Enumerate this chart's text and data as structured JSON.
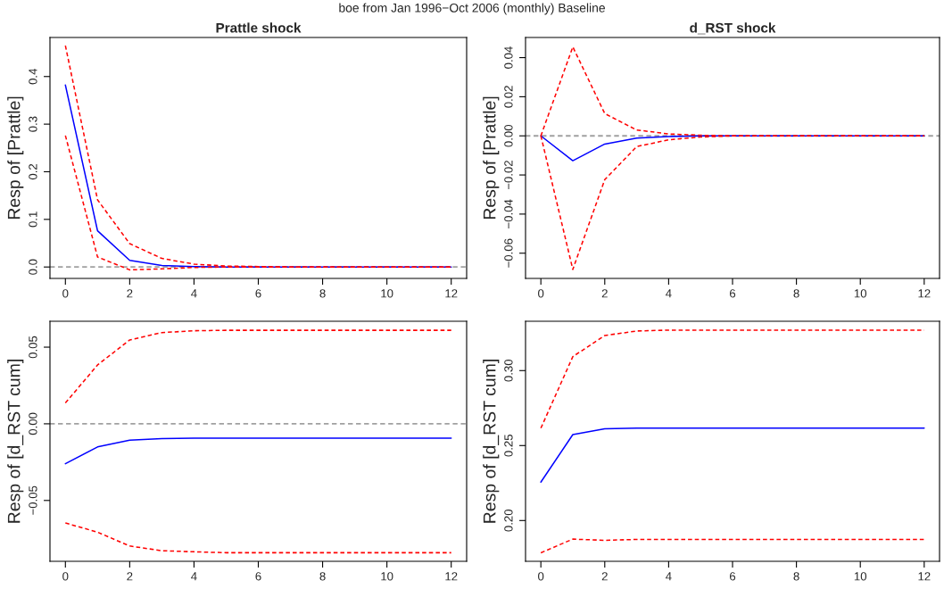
{
  "chart_data": [
    {
      "type": "line",
      "title": "Prattle shock",
      "ylabel": "Resp of [Prattle]",
      "annotations": [
        "boe from Jan 1996−Oct 2006 (monthly) Baseline"
      ],
      "x": [
        0,
        1,
        2,
        3,
        4,
        5,
        6,
        7,
        8,
        9,
        10,
        11,
        12
      ],
      "xlim": [
        -0.48,
        12.48
      ],
      "xticks": [
        0,
        2,
        4,
        6,
        8,
        10,
        12
      ],
      "ylim": [
        -0.024,
        0.482
      ],
      "yticks": [
        {
          "value": 0,
          "label": "0.0"
        },
        0.1,
        0.2,
        0.3,
        0.4
      ],
      "grid": false,
      "ref_lines": [
        {
          "axis": "y",
          "value": 0,
          "color": "#a0a0a0",
          "line_style": "dashed"
        }
      ],
      "series": [
        {
          "color": "#0000ff",
          "line_style": "solid",
          "values": [
            0.382,
            0.076,
            0.014,
            0.003,
            0.001,
            0,
            0,
            0,
            0,
            0,
            0,
            0,
            0
          ]
        },
        {
          "color": "#ff0000",
          "line_style": "dashed",
          "values": [
            0.465,
            0.141,
            0.049,
            0.018,
            0.006,
            0.002,
            0.001,
            0,
            0,
            0,
            0,
            0,
            0
          ]
        },
        {
          "color": "#ff0000",
          "line_style": "dashed",
          "values": [
            0.276,
            0.021,
            -0.006,
            -0.004,
            -0.001,
            0,
            0,
            0,
            0,
            0,
            0,
            0,
            0
          ]
        }
      ]
    },
    {
      "type": "line",
      "title": "d_RST shock",
      "ylabel": "Resp of [Prattle]",
      "x": [
        0,
        1,
        2,
        3,
        4,
        5,
        6,
        7,
        8,
        9,
        10,
        11,
        12
      ],
      "xlim": [
        -0.48,
        12.48
      ],
      "xticks": [
        0,
        2,
        4,
        6,
        8,
        10,
        12
      ],
      "ylim": [
        -0.0729,
        0.0503
      ],
      "yticks": [
        {
          "value": -0.06,
          "label": "−0.06"
        },
        {
          "value": -0.04,
          "label": "−0.04"
        },
        {
          "value": -0.02,
          "label": "−0.02"
        },
        {
          "value": 0,
          "label": "0.00"
        },
        {
          "value": 0.02,
          "label": "0.02"
        },
        {
          "value": 0.04,
          "label": "0.04"
        }
      ],
      "grid": false,
      "ref_lines": [
        {
          "axis": "y",
          "value": 0,
          "color": "#a0a0a0",
          "line_style": "dashed"
        }
      ],
      "series": [
        {
          "color": "#0000ff",
          "line_style": "solid",
          "values": [
            0,
            -0.0127,
            -0.0042,
            -0.0011,
            -0.0003,
            0,
            0,
            0,
            0,
            0,
            0,
            0,
            0
          ]
        },
        {
          "color": "#ff0000",
          "line_style": "dashed",
          "values": [
            0,
            0.0455,
            0.0114,
            0.003,
            0.001,
            0.0003,
            0,
            0,
            0,
            0,
            0,
            0,
            0
          ]
        },
        {
          "color": "#ff0000",
          "line_style": "dashed",
          "values": [
            0,
            -0.0683,
            -0.0224,
            -0.0055,
            -0.002,
            -0.0006,
            0,
            0,
            0,
            0,
            0,
            0,
            0
          ]
        }
      ]
    },
    {
      "type": "line",
      "ylabel": "Resp of [d_RST cum]",
      "x": [
        0,
        1,
        2,
        3,
        4,
        5,
        6,
        7,
        8,
        9,
        10,
        11,
        12
      ],
      "xlim": [
        -0.48,
        12.48
      ],
      "xticks": [
        0,
        2,
        4,
        6,
        8,
        10,
        12
      ],
      "ylim": [
        -0.0897,
        0.0669
      ],
      "yticks": [
        {
          "value": -0.05,
          "label": "−0.05"
        },
        {
          "value": 0,
          "label": "0.00"
        },
        {
          "value": 0.05,
          "label": "0.05"
        }
      ],
      "grid": false,
      "ref_lines": [
        {
          "axis": "y",
          "value": 0,
          "color": "#a0a0a0",
          "line_style": "dashed"
        }
      ],
      "series": [
        {
          "color": "#0000ff",
          "line_style": "solid",
          "values": [
            -0.026,
            -0.0151,
            -0.0107,
            -0.0097,
            -0.0093,
            -0.0093,
            -0.0093,
            -0.0093,
            -0.0093,
            -0.0093,
            -0.0093,
            -0.0093,
            -0.0093
          ]
        },
        {
          "color": "#ff0000",
          "line_style": "dashed",
          "values": [
            0.0136,
            0.0384,
            0.0547,
            0.0595,
            0.0607,
            0.061,
            0.061,
            0.061,
            0.061,
            0.061,
            0.061,
            0.061,
            0.061
          ]
        },
        {
          "color": "#ff0000",
          "line_style": "dashed",
          "values": [
            -0.0647,
            -0.0707,
            -0.0797,
            -0.0828,
            -0.0835,
            -0.0841,
            -0.0841,
            -0.0841,
            -0.0841,
            -0.0841,
            -0.0841,
            -0.0841,
            -0.0841
          ]
        }
      ]
    },
    {
      "type": "line",
      "ylabel": "Resp of [d_RST cum]",
      "x": [
        0,
        1,
        2,
        3,
        4,
        5,
        6,
        7,
        8,
        9,
        10,
        11,
        12
      ],
      "xlim": [
        -0.48,
        12.48
      ],
      "xticks": [
        0,
        2,
        4,
        6,
        8,
        10,
        12
      ],
      "ylim": [
        0.1728,
        0.3329
      ],
      "yticks": [
        {
          "value": 0.2,
          "label": "0.20"
        },
        {
          "value": 0.25,
          "label": "0.25"
        },
        {
          "value": 0.3,
          "label": "0.30"
        }
      ],
      "grid": false,
      "series": [
        {
          "color": "#0000ff",
          "line_style": "solid",
          "values": [
            0.2256,
            0.2573,
            0.2612,
            0.2616,
            0.2616,
            0.2616,
            0.2616,
            0.2616,
            0.2616,
            0.2616,
            0.2616,
            0.2616,
            0.2616
          ]
        },
        {
          "color": "#ff0000",
          "line_style": "dashed",
          "values": [
            0.2616,
            0.3093,
            0.3234,
            0.3264,
            0.327,
            0.327,
            0.327,
            0.327,
            0.327,
            0.327,
            0.327,
            0.327,
            0.327
          ]
        },
        {
          "color": "#ff0000",
          "line_style": "dashed",
          "values": [
            0.1785,
            0.1876,
            0.1868,
            0.1874,
            0.1874,
            0.1874,
            0.1874,
            0.1874,
            0.1874,
            0.1874,
            0.1874,
            0.1874,
            0.1874
          ]
        }
      ]
    }
  ]
}
